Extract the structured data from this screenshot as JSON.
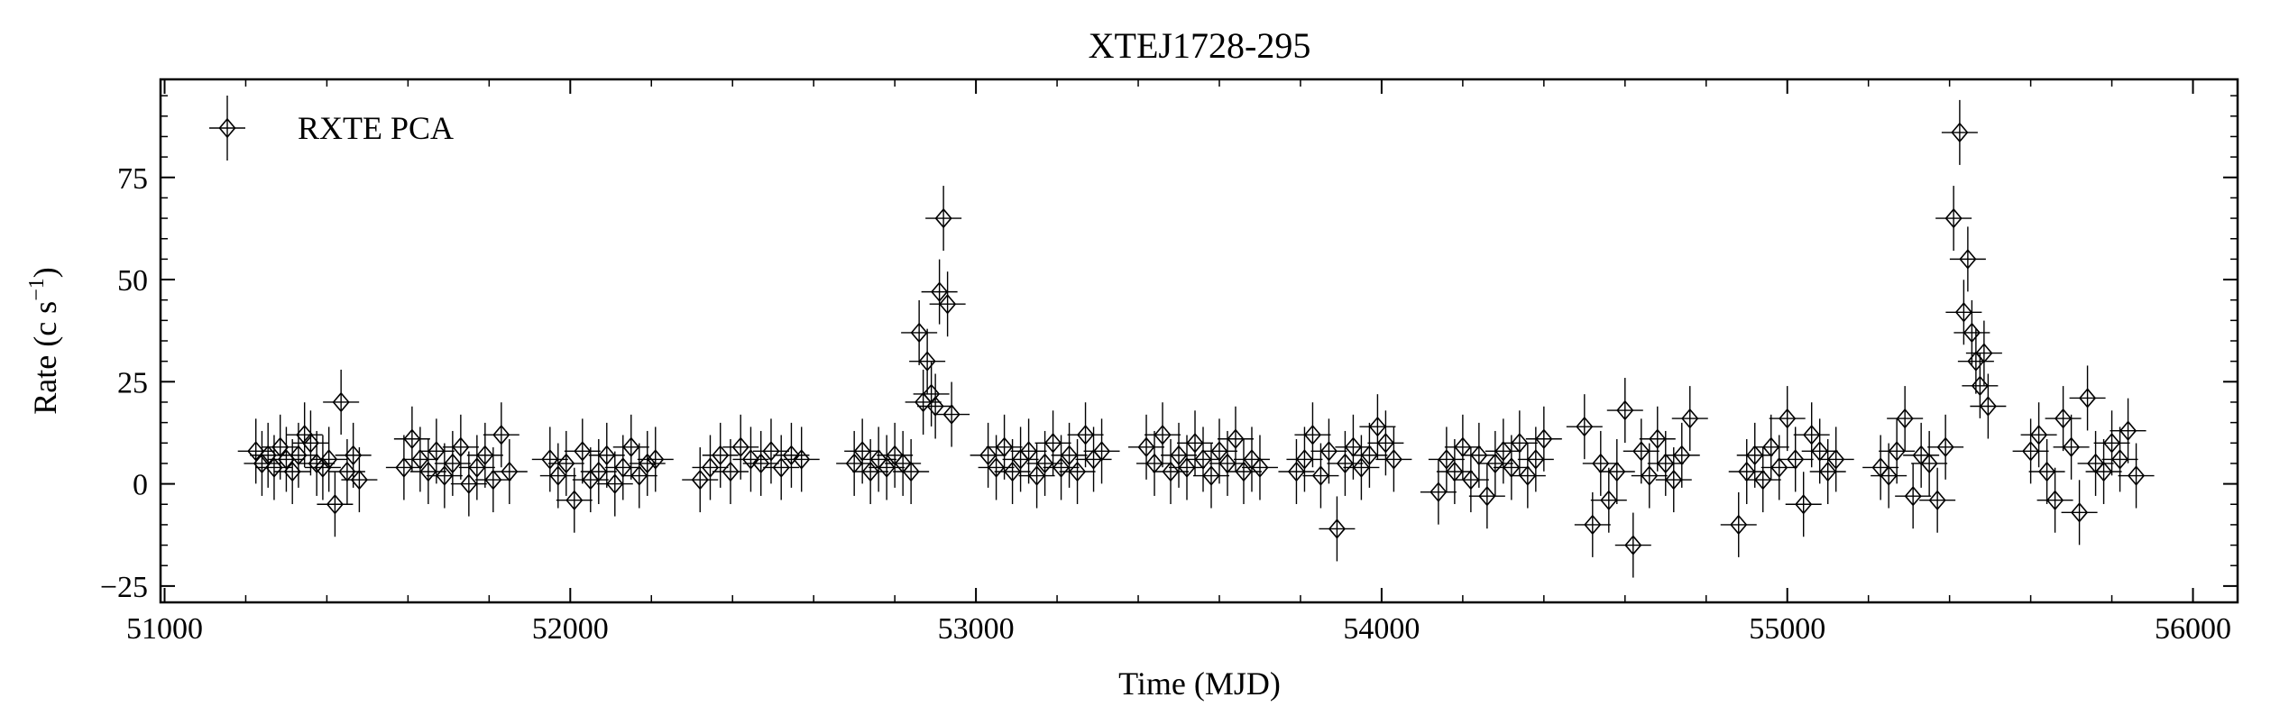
{
  "chart_data": {
    "type": "scatter",
    "title": "XTEJ1728-295",
    "xlabel": "Time (MJD)",
    "ylabel": "Rate (c s",
    "ylabel_unit_superscript": "−1",
    "ylabel_close": ")",
    "xlim": [
      50990,
      56110
    ],
    "ylim": [
      -29,
      99
    ],
    "xticks": [
      51000,
      52000,
      53000,
      54000,
      55000,
      56000
    ],
    "xtick_labels": [
      "51000",
      "52000",
      "53000",
      "54000",
      "55000",
      "56000"
    ],
    "yticks": [
      -25,
      0,
      25,
      50,
      75
    ],
    "ytick_labels": [
      "−25",
      "0",
      "25",
      "50",
      "75"
    ],
    "x_minor_step": 200,
    "y_minor_step": 5,
    "grid": false,
    "legend": {
      "position": "top-left",
      "entries": [
        "RXTE PCA"
      ]
    },
    "marker": "open-diamond-with-errorbars",
    "series_color": "#000000",
    "series": [
      {
        "name": "RXTE PCA",
        "x": [
          51225,
          51240,
          51255,
          51270,
          51285,
          51300,
          51315,
          51330,
          51345,
          51360,
          51375,
          51390,
          51405,
          51420,
          51435,
          51450,
          51465,
          51480,
          51590,
          51610,
          51630,
          51650,
          51670,
          51690,
          51710,
          51730,
          51750,
          51770,
          51790,
          51810,
          51830,
          51850,
          51950,
          51970,
          51990,
          52010,
          52030,
          52050,
          52070,
          52090,
          52110,
          52130,
          52150,
          52170,
          52190,
          52210,
          52320,
          52345,
          52370,
          52395,
          52420,
          52445,
          52470,
          52495,
          52520,
          52545,
          52570,
          52700,
          52720,
          52740,
          52760,
          52780,
          52800,
          52820,
          52840,
          52860,
          52870,
          52880,
          52890,
          52900,
          52910,
          52920,
          52930,
          52940,
          53030,
          53050,
          53070,
          53090,
          53110,
          53130,
          53150,
          53170,
          53190,
          53210,
          53230,
          53250,
          53270,
          53290,
          53310,
          53420,
          53440,
          53460,
          53480,
          53500,
          53520,
          53540,
          53560,
          53580,
          53600,
          53620,
          53640,
          53660,
          53680,
          53700,
          53790,
          53810,
          53830,
          53850,
          53870,
          53890,
          53910,
          53930,
          53950,
          53970,
          53990,
          54010,
          54030,
          54140,
          54160,
          54180,
          54200,
          54220,
          54240,
          54260,
          54280,
          54300,
          54320,
          54340,
          54360,
          54380,
          54400,
          54500,
          54520,
          54540,
          54560,
          54580,
          54600,
          54620,
          54640,
          54660,
          54680,
          54700,
          54720,
          54740,
          54760,
          54880,
          54900,
          54920,
          54940,
          54960,
          54980,
          55000,
          55020,
          55040,
          55060,
          55080,
          55100,
          55120,
          55230,
          55250,
          55270,
          55290,
          55310,
          55330,
          55350,
          55370,
          55390,
          55410,
          55425,
          55435,
          55445,
          55455,
          55465,
          55475,
          55485,
          55495,
          55600,
          55620,
          55640,
          55660,
          55680,
          55700,
          55720,
          55740,
          55760,
          55780,
          55800,
          55820,
          55840,
          55860
        ],
        "y": [
          8,
          5,
          7,
          4,
          9,
          6,
          3,
          7,
          12,
          10,
          5,
          4,
          6,
          -5,
          20,
          3,
          7,
          1,
          4,
          11,
          6,
          3,
          8,
          2,
          5,
          9,
          0,
          4,
          7,
          1,
          12,
          3,
          6,
          2,
          5,
          -4,
          8,
          1,
          3,
          7,
          0,
          4,
          9,
          2,
          5,
          6,
          1,
          4,
          7,
          3,
          9,
          6,
          5,
          8,
          4,
          7,
          6,
          5,
          8,
          3,
          6,
          4,
          7,
          5,
          3,
          37,
          20,
          30,
          22,
          19,
          47,
          65,
          44,
          17,
          7,
          4,
          9,
          3,
          6,
          8,
          2,
          5,
          10,
          4,
          7,
          3,
          12,
          6,
          8,
          9,
          5,
          12,
          3,
          7,
          4,
          10,
          6,
          2,
          8,
          5,
          11,
          3,
          6,
          4,
          3,
          6,
          12,
          2,
          8,
          -11,
          5,
          9,
          4,
          7,
          14,
          10,
          6,
          -2,
          6,
          3,
          9,
          1,
          7,
          -3,
          5,
          8,
          4,
          10,
          2,
          6,
          11,
          14,
          -10,
          5,
          -4,
          3,
          18,
          -15,
          8,
          2,
          11,
          5,
          1,
          7,
          16,
          -10,
          3,
          7,
          1,
          9,
          4,
          16,
          6,
          -5,
          12,
          8,
          3,
          6,
          4,
          2,
          8,
          16,
          -3,
          7,
          5,
          -4,
          9,
          65,
          86,
          42,
          55,
          37,
          30,
          24,
          32,
          19,
          8,
          12,
          3,
          -4,
          16,
          9,
          -7,
          21,
          5,
          3,
          10,
          6,
          13,
          2
        ]
      }
    ]
  }
}
